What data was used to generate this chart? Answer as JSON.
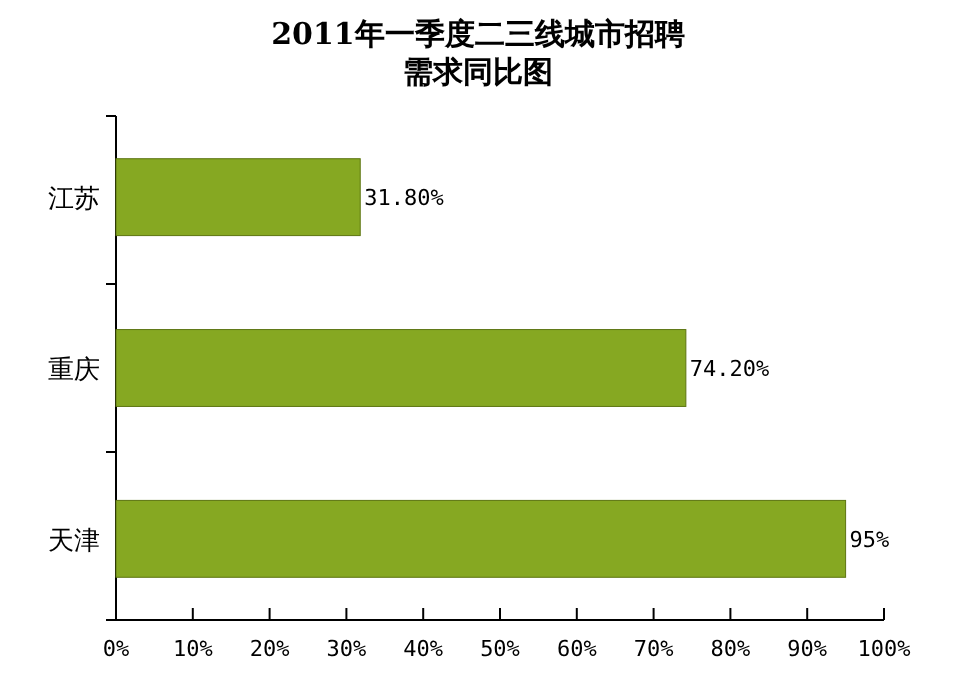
{
  "chart_data": {
    "type": "bar",
    "orientation": "horizontal",
    "title": "2011年一季度二三线城市招聘需求同比图",
    "categories": [
      "江苏",
      "重庆",
      "天津"
    ],
    "values": [
      31.8,
      74.2,
      95
    ],
    "value_labels": [
      "31.80%",
      "74.20%",
      "95%"
    ],
    "color": "#86a822",
    "xlim": [
      0,
      100
    ],
    "xticks": [
      {
        "value": 0,
        "label": "0%"
      },
      {
        "value": 10,
        "label": "10%"
      },
      {
        "value": 20,
        "label": "20%"
      },
      {
        "value": 30,
        "label": "30%"
      },
      {
        "value": 40,
        "label": "40%"
      },
      {
        "value": 50,
        "label": "50%"
      },
      {
        "value": 60,
        "label": "60%"
      },
      {
        "value": 70,
        "label": "70%"
      },
      {
        "value": 80,
        "label": "80%"
      },
      {
        "value": 90,
        "label": "90%"
      },
      {
        "value": 100,
        "label": "100%"
      }
    ],
    "grid": false
  }
}
